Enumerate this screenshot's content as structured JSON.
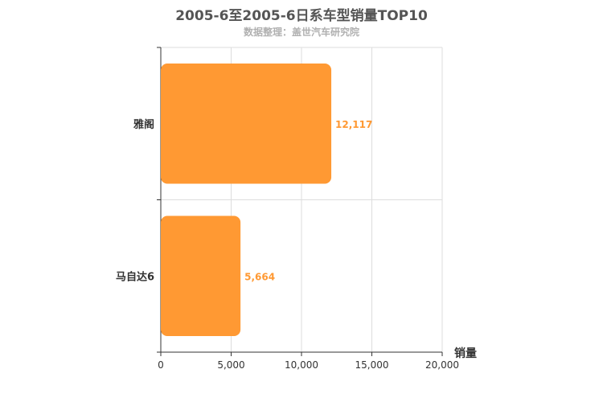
{
  "title": "2005-6至2005-6日系车型销量TOP10",
  "subtitle": "数据整理：盖世汽车研究院",
  "chart_data": {
    "type": "bar",
    "orientation": "horizontal",
    "title": "2005-6至2005-6日系车型销量TOP10",
    "subtitle": "数据整理：盖世汽车研究院",
    "categories": [
      "雅阁",
      "马自达6"
    ],
    "values": [
      12117,
      5664
    ],
    "value_labels": [
      "12,117",
      "5,664"
    ],
    "xlabel": "销量",
    "ylabel": "",
    "xlim": [
      0,
      20000
    ],
    "xticks": [
      0,
      5000,
      10000,
      15000,
      20000
    ],
    "xtick_labels": [
      "0",
      "5,000",
      "10,000",
      "15,000",
      "20,000"
    ],
    "grid": true,
    "bar_color": "#ff9933",
    "label_color": "#ff9933"
  }
}
